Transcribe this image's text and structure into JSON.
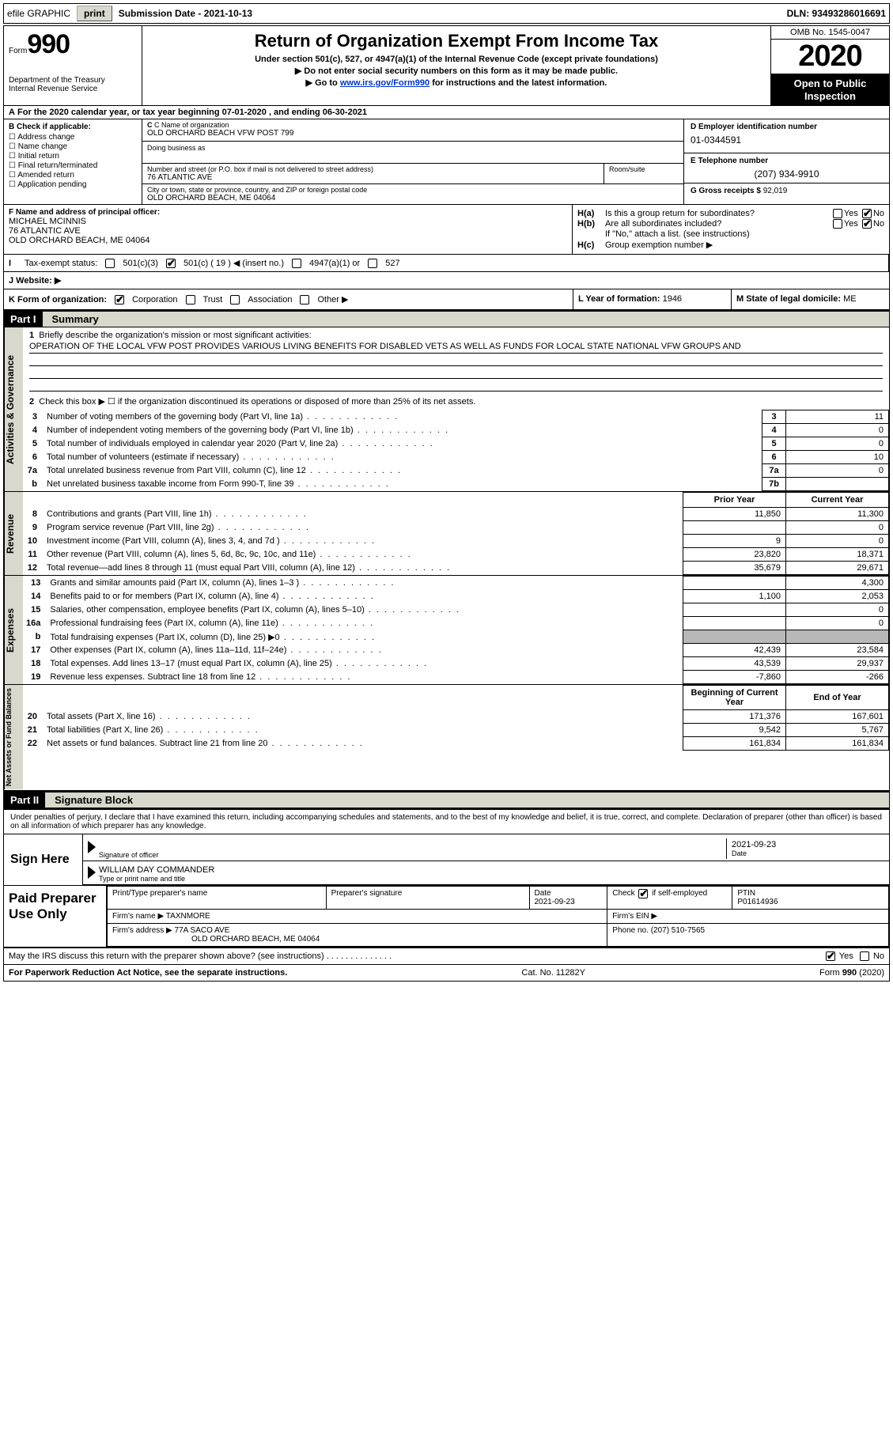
{
  "topbar": {
    "efile_label": "efile GRAPHIC",
    "print_btn": "print",
    "submission_label": "Submission Date - 2021-10-13",
    "dln_label": "DLN: 93493286016691"
  },
  "header": {
    "form_word": "Form",
    "form_number": "990",
    "dept1": "Department of the Treasury",
    "dept2": "Internal Revenue Service",
    "title": "Return of Organization Exempt From Income Tax",
    "sub1": "Under section 501(c), 527, or 4947(a)(1) of the Internal Revenue Code (except private foundations)",
    "sub2": "▶ Do not enter social security numbers on this form as it may be made public.",
    "sub3_pre": "▶ Go to ",
    "sub3_link": "www.irs.gov/Form990",
    "sub3_post": " for instructions and the latest information.",
    "omb": "OMB No. 1545-0047",
    "year": "2020",
    "open": "Open to Public Inspection"
  },
  "period": {
    "prefix_a": "A",
    "text": "For the 2020 calendar year, or tax year beginning 07-01-2020    , and ending 06-30-2021"
  },
  "boxB": {
    "hdr": "B Check if applicable:",
    "opts": [
      "Address change",
      "Name change",
      "Initial return",
      "Final return/terminated",
      "Amended return",
      "Application pending"
    ]
  },
  "boxC": {
    "name_lbl": "C Name of organization",
    "name_val": "OLD ORCHARD BEACH VFW POST 799",
    "dba_lbl": "Doing business as",
    "addr_lbl": "Number and street (or P.O. box if mail is not delivered to street address)",
    "addr_val": "76 ATLANTIC AVE",
    "room_lbl": "Room/suite",
    "city_lbl": "City or town, state or province, country, and ZIP or foreign postal code",
    "city_val": "OLD ORCHARD BEACH, ME  04064"
  },
  "boxD": {
    "ein_lbl": "D Employer identification number",
    "ein_val": "01-0344591",
    "tel_lbl": "E Telephone number",
    "tel_val": "(207) 934-9910",
    "gross_lbl": "G Gross receipts $",
    "gross_val": "92,019"
  },
  "boxF": {
    "lbl": "F Name and address of principal officer:",
    "name": "MICHAEL MCINNIS",
    "addr1": "76 ATLANTIC AVE",
    "addr2": "OLD ORCHARD BEACH, ME  04064"
  },
  "boxH": {
    "ha_lbl": "H(a)",
    "ha_txt": "Is this a group return for subordinates?",
    "hb_lbl": "H(b)",
    "hb_txt": "Are all subordinates included?",
    "hb_note": "If \"No,\" attach a list. (see instructions)",
    "hc_lbl": "H(c)",
    "hc_txt": "Group exemption number ▶",
    "yes": "Yes",
    "no": "No"
  },
  "boxI": {
    "lbl": "Tax-exempt status:",
    "opt1": "501(c)(3)",
    "opt2": "501(c) ( 19 ) ◀ (insert no.)",
    "opt3": "4947(a)(1) or",
    "opt4": "527"
  },
  "boxJ": {
    "lbl": "J   Website: ▶"
  },
  "boxK": {
    "lbl": "K Form of organization:",
    "opts": [
      "Corporation",
      "Trust",
      "Association",
      "Other ▶"
    ],
    "checked_idx": 0
  },
  "boxL": {
    "lbl": "L Year of formation:",
    "val": "1946"
  },
  "boxM": {
    "lbl": "M State of legal domicile:",
    "val": "ME"
  },
  "part1": {
    "label": "Part I",
    "title": "Summary"
  },
  "gov": {
    "side": "Activities & Governance",
    "line1_lbl": "1",
    "line1_txt": "Briefly describe the organization's mission or most significant activities:",
    "line1_val": "OPERATION OF THE LOCAL VFW POST PROVIDES VARIOUS LIVING BENEFITS FOR DISABLED VETS AS WELL AS FUNDS FOR LOCAL STATE NATIONAL VFW GROUPS AND",
    "line2_lbl": "2",
    "line2_txt": "Check this box ▶ ☐ if the organization discontinued its operations or disposed of more than 25% of its net assets.",
    "rows": [
      {
        "n": "3",
        "d": "Number of voting members of the governing body (Part VI, line 1a)",
        "box": "3",
        "v": "11"
      },
      {
        "n": "4",
        "d": "Number of independent voting members of the governing body (Part VI, line 1b)",
        "box": "4",
        "v": "0"
      },
      {
        "n": "5",
        "d": "Total number of individuals employed in calendar year 2020 (Part V, line 2a)",
        "box": "5",
        "v": "0"
      },
      {
        "n": "6",
        "d": "Total number of volunteers (estimate if necessary)",
        "box": "6",
        "v": "10"
      },
      {
        "n": "7a",
        "d": "Total unrelated business revenue from Part VIII, column (C), line 12",
        "box": "7a",
        "v": "0"
      },
      {
        "n": "b",
        "d": "Net unrelated business taxable income from Form 990-T, line 39",
        "box": "7b",
        "v": ""
      }
    ]
  },
  "rev": {
    "side": "Revenue",
    "hdr_prior": "Prior Year",
    "hdr_curr": "Current Year",
    "rows": [
      {
        "n": "8",
        "d": "Contributions and grants (Part VIII, line 1h)",
        "p": "11,850",
        "c": "11,300"
      },
      {
        "n": "9",
        "d": "Program service revenue (Part VIII, line 2g)",
        "p": "",
        "c": "0"
      },
      {
        "n": "10",
        "d": "Investment income (Part VIII, column (A), lines 3, 4, and 7d )",
        "p": "9",
        "c": "0"
      },
      {
        "n": "11",
        "d": "Other revenue (Part VIII, column (A), lines 5, 6d, 8c, 9c, 10c, and 11e)",
        "p": "23,820",
        "c": "18,371"
      },
      {
        "n": "12",
        "d": "Total revenue—add lines 8 through 11 (must equal Part VIII, column (A), line 12)",
        "p": "35,679",
        "c": "29,671"
      }
    ]
  },
  "exp": {
    "side": "Expenses",
    "rows": [
      {
        "n": "13",
        "d": "Grants and similar amounts paid (Part IX, column (A), lines 1–3 )",
        "p": "",
        "c": "4,300"
      },
      {
        "n": "14",
        "d": "Benefits paid to or for members (Part IX, column (A), line 4)",
        "p": "1,100",
        "c": "2,053"
      },
      {
        "n": "15",
        "d": "Salaries, other compensation, employee benefits (Part IX, column (A), lines 5–10)",
        "p": "",
        "c": "0"
      },
      {
        "n": "16a",
        "d": "Professional fundraising fees (Part IX, column (A), line 11e)",
        "p": "",
        "c": "0"
      },
      {
        "n": "b",
        "d": "Total fundraising expenses (Part IX, column (D), line 25) ▶0",
        "p": "grey",
        "c": "grey"
      },
      {
        "n": "17",
        "d": "Other expenses (Part IX, column (A), lines 11a–11d, 11f–24e)",
        "p": "42,439",
        "c": "23,584"
      },
      {
        "n": "18",
        "d": "Total expenses. Add lines 13–17 (must equal Part IX, column (A), line 25)",
        "p": "43,539",
        "c": "29,937"
      },
      {
        "n": "19",
        "d": "Revenue less expenses. Subtract line 18 from line 12",
        "p": "-7,860",
        "c": "-266"
      }
    ]
  },
  "na": {
    "side": "Net Assets or Fund Balances",
    "hdr_begin": "Beginning of Current Year",
    "hdr_end": "End of Year",
    "rows": [
      {
        "n": "20",
        "d": "Total assets (Part X, line 16)",
        "p": "171,376",
        "c": "167,601"
      },
      {
        "n": "21",
        "d": "Total liabilities (Part X, line 26)",
        "p": "9,542",
        "c": "5,767"
      },
      {
        "n": "22",
        "d": "Net assets or fund balances. Subtract line 21 from line 20",
        "p": "161,834",
        "c": "161,834"
      }
    ]
  },
  "part2": {
    "label": "Part II",
    "title": "Signature Block"
  },
  "sig": {
    "perjury": "Under penalties of perjury, I declare that I have examined this return, including accompanying schedules and statements, and to the best of my knowledge and belief, it is true, correct, and complete. Declaration of preparer (other than officer) is based on all information of which preparer has any knowledge.",
    "sign_here": "Sign Here",
    "sig_officer_lbl": "Signature of officer",
    "sig_date": "2021-09-23",
    "date_lbl": "Date",
    "name_val": "WILLIAM DAY COMMANDER",
    "name_lbl": "Type or print name and title"
  },
  "prep": {
    "side": "Paid Preparer Use Only",
    "r1c1_lbl": "Print/Type preparer's name",
    "r1c2_lbl": "Preparer's signature",
    "r1c3_lbl": "Date",
    "r1c3_val": "2021-09-23",
    "r1c4_lbl": "Check ☑ if self-employed",
    "r1c5_lbl": "PTIN",
    "r1c5_val": "P01614936",
    "r2c1_lbl": "Firm's name   ▶",
    "r2c1_val": "TAXNMORE",
    "r2c2_lbl": "Firm's EIN ▶",
    "r3c1_lbl": "Firm's address ▶",
    "r3c1_val1": "77A SACO AVE",
    "r3c1_val2": "OLD ORCHARD BEACH, ME  04064",
    "r3c2_lbl": "Phone no.",
    "r3c2_val": "(207) 510-7565"
  },
  "footer": {
    "discuss": "May the IRS discuss this return with the preparer shown above? (see instructions)",
    "yes": "Yes",
    "no": "No",
    "pra": "For Paperwork Reduction Act Notice, see the separate instructions.",
    "cat": "Cat. No. 11282Y",
    "form": "Form 990 (2020)"
  }
}
